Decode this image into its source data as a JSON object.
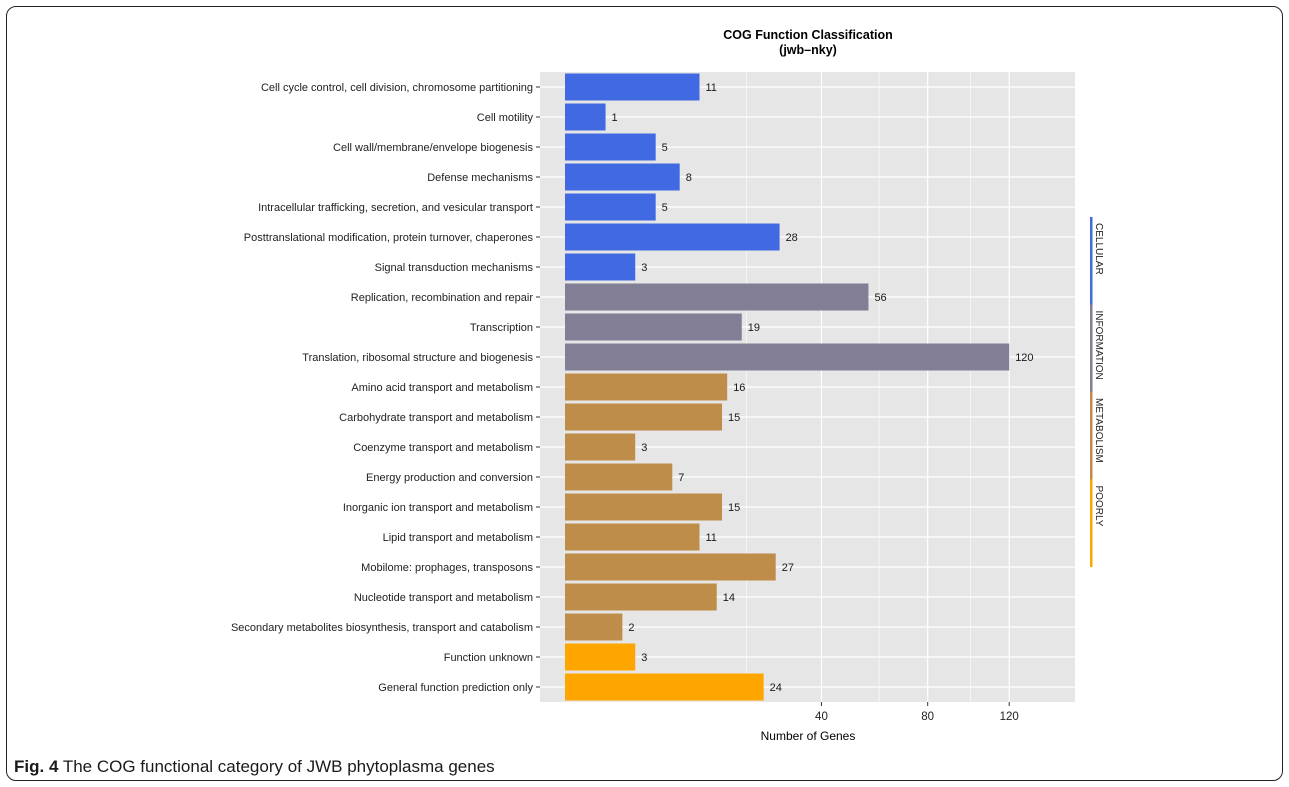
{
  "caption": {
    "label": "Fig. 4",
    "text": "The COG functional category of JWB phytoplasma genes"
  },
  "chart_data": {
    "type": "bar",
    "orientation": "horizontal",
    "title": "COG Function Classification",
    "subtitle": "(jwb–nky)",
    "xlabel": "Number of Genes",
    "ylabel": "",
    "x_scale": "sqrt",
    "xlim": [
      0,
      135
    ],
    "x_ticks": [
      40,
      80,
      120
    ],
    "grid": true,
    "categories": [
      "Cell cycle control, cell division, chromosome partitioning",
      "Cell motility",
      "Cell wall/membrane/envelope biogenesis",
      "Defense mechanisms",
      "Intracellular trafficking, secretion, and vesicular transport",
      "Posttranslational modification, protein turnover, chaperones",
      "Signal transduction mechanisms",
      "Replication, recombination and repair",
      "Transcription",
      "Translation, ribosomal structure and biogenesis",
      "Amino acid transport and metabolism",
      "Carbohydrate transport and metabolism",
      "Coenzyme transport and metabolism",
      "Energy production and conversion",
      "Inorganic ion transport and metabolism",
      "Lipid transport and metabolism",
      "Mobilome: prophages, transposons",
      "Nucleotide transport and metabolism",
      "Secondary metabolites biosynthesis, transport and catabolism",
      "Function unknown",
      "General function prediction only"
    ],
    "values": [
      11,
      1,
      5,
      8,
      5,
      28,
      3,
      56,
      19,
      120,
      16,
      15,
      3,
      7,
      15,
      11,
      27,
      14,
      2,
      3,
      24
    ],
    "groups": [
      "CELLULAR",
      "CELLULAR",
      "CELLULAR",
      "CELLULAR",
      "CELLULAR",
      "CELLULAR",
      "CELLULAR",
      "INFORMATION",
      "INFORMATION",
      "INFORMATION",
      "METABOLISM",
      "METABOLISM",
      "METABOLISM",
      "METABOLISM",
      "METABOLISM",
      "METABOLISM",
      "METABOLISM",
      "METABOLISM",
      "METABOLISM",
      "POORLY",
      "POORLY"
    ],
    "group_legend": [
      {
        "name": "CELLULAR",
        "color": "#4169E1"
      },
      {
        "name": "INFORMATION",
        "color": "#817E96"
      },
      {
        "name": "METABOLISM",
        "color": "#BF8D4A"
      },
      {
        "name": "POORLY",
        "color": "#FFA500"
      }
    ],
    "legend_position": "right",
    "panel_background": "#E6E6E6",
    "grid_color": "#FFFFFF"
  }
}
